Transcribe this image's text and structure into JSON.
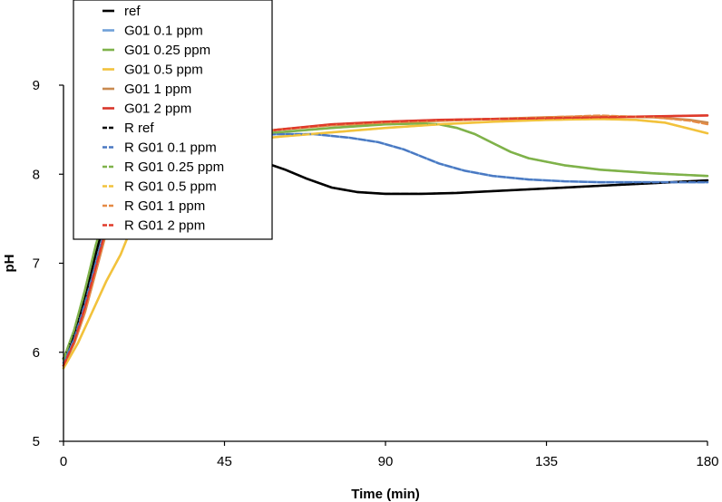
{
  "chart_data": {
    "type": "line",
    "title": "",
    "xlabel": "Time (min)",
    "ylabel": "pH",
    "xlim": [
      0,
      180
    ],
    "ylim": [
      5,
      9
    ],
    "x_ticks": [
      0,
      45,
      90,
      135,
      180
    ],
    "y_ticks": [
      5,
      6,
      7,
      8,
      9
    ],
    "grid": false,
    "legend_position": "top-left",
    "series": [
      {
        "name": "ref",
        "color": "#000000",
        "style": "solid",
        "points": [
          [
            0,
            5.93
          ],
          [
            3,
            6.2
          ],
          [
            6,
            6.6
          ],
          [
            9,
            7.1
          ],
          [
            12,
            7.55
          ],
          [
            15,
            7.9
          ],
          [
            18,
            8.1
          ],
          [
            21,
            8.22
          ],
          [
            25,
            8.28
          ],
          [
            30,
            8.28
          ],
          [
            40,
            8.24
          ],
          [
            50,
            8.18
          ],
          [
            57,
            8.12
          ],
          [
            62,
            8.05
          ],
          [
            68,
            7.95
          ],
          [
            75,
            7.85
          ],
          [
            82,
            7.8
          ],
          [
            90,
            7.78
          ],
          [
            100,
            7.78
          ],
          [
            110,
            7.79
          ],
          [
            120,
            7.81
          ],
          [
            135,
            7.84
          ],
          [
            150,
            7.87
          ],
          [
            165,
            7.9
          ],
          [
            180,
            7.93
          ]
        ]
      },
      {
        "name": "G01 0.1 ppm",
        "color": "#6fa0d8",
        "style": "solid",
        "points": [
          [
            0,
            5.88
          ],
          [
            3,
            6.15
          ],
          [
            6,
            6.55
          ],
          [
            9,
            7.0
          ],
          [
            12,
            7.45
          ],
          [
            15,
            7.8
          ],
          [
            18,
            8.05
          ],
          [
            22,
            8.22
          ],
          [
            30,
            8.33
          ],
          [
            40,
            8.4
          ],
          [
            50,
            8.43
          ],
          [
            60,
            8.45
          ],
          [
            70,
            8.45
          ],
          [
            80,
            8.41
          ],
          [
            88,
            8.36
          ],
          [
            95,
            8.28
          ],
          [
            100,
            8.2
          ],
          [
            105,
            8.12
          ],
          [
            112,
            8.04
          ],
          [
            120,
            7.98
          ],
          [
            130,
            7.94
          ],
          [
            140,
            7.92
          ],
          [
            150,
            7.91
          ],
          [
            165,
            7.91
          ],
          [
            180,
            7.91
          ]
        ]
      },
      {
        "name": "G01 0.25 ppm",
        "color": "#7fb24a",
        "style": "solid",
        "points": [
          [
            0,
            5.92
          ],
          [
            3,
            6.25
          ],
          [
            6,
            6.7
          ],
          [
            9,
            7.2
          ],
          [
            12,
            7.6
          ],
          [
            15,
            7.95
          ],
          [
            18,
            8.15
          ],
          [
            22,
            8.27
          ],
          [
            30,
            8.35
          ],
          [
            45,
            8.42
          ],
          [
            60,
            8.47
          ],
          [
            75,
            8.52
          ],
          [
            90,
            8.56
          ],
          [
            100,
            8.57
          ],
          [
            105,
            8.56
          ],
          [
            110,
            8.52
          ],
          [
            115,
            8.45
          ],
          [
            120,
            8.35
          ],
          [
            125,
            8.25
          ],
          [
            130,
            8.18
          ],
          [
            140,
            8.1
          ],
          [
            150,
            8.05
          ],
          [
            165,
            8.01
          ],
          [
            180,
            7.98
          ]
        ]
      },
      {
        "name": "G01 0.5 ppm",
        "color": "#f2c23c",
        "style": "solid",
        "points": [
          [
            0,
            5.82
          ],
          [
            4,
            6.1
          ],
          [
            8,
            6.45
          ],
          [
            12,
            6.8
          ],
          [
            16,
            7.1
          ],
          [
            20,
            7.5
          ],
          [
            24,
            7.85
          ],
          [
            28,
            8.1
          ],
          [
            33,
            8.25
          ],
          [
            40,
            8.33
          ],
          [
            50,
            8.38
          ],
          [
            60,
            8.42
          ],
          [
            75,
            8.47
          ],
          [
            90,
            8.52
          ],
          [
            105,
            8.56
          ],
          [
            120,
            8.59
          ],
          [
            135,
            8.61
          ],
          [
            150,
            8.62
          ],
          [
            160,
            8.61
          ],
          [
            168,
            8.58
          ],
          [
            175,
            8.51
          ],
          [
            180,
            8.46
          ]
        ]
      },
      {
        "name": "G01 1 ppm",
        "color": "#c98a50",
        "style": "solid",
        "points": [
          [
            0,
            5.85
          ],
          [
            3,
            6.1
          ],
          [
            6,
            6.45
          ],
          [
            9,
            6.9
          ],
          [
            12,
            7.35
          ],
          [
            15,
            7.75
          ],
          [
            18,
            8.0
          ],
          [
            22,
            8.2
          ],
          [
            30,
            8.32
          ],
          [
            45,
            8.42
          ],
          [
            60,
            8.5
          ],
          [
            75,
            8.55
          ],
          [
            90,
            8.58
          ],
          [
            105,
            8.6
          ],
          [
            120,
            8.62
          ],
          [
            135,
            8.64
          ],
          [
            150,
            8.65
          ],
          [
            165,
            8.64
          ],
          [
            175,
            8.61
          ],
          [
            180,
            8.58
          ]
        ]
      },
      {
        "name": "G01 2 ppm",
        "color": "#d9362b",
        "style": "solid",
        "points": [
          [
            0,
            5.85
          ],
          [
            3,
            6.12
          ],
          [
            6,
            6.5
          ],
          [
            9,
            6.95
          ],
          [
            12,
            7.4
          ],
          [
            15,
            7.8
          ],
          [
            18,
            8.05
          ],
          [
            22,
            8.22
          ],
          [
            30,
            8.33
          ],
          [
            45,
            8.43
          ],
          [
            60,
            8.5
          ],
          [
            75,
            8.56
          ],
          [
            90,
            8.59
          ],
          [
            105,
            8.61
          ],
          [
            120,
            8.62
          ],
          [
            135,
            8.63
          ],
          [
            150,
            8.64
          ],
          [
            165,
            8.65
          ],
          [
            180,
            8.66
          ]
        ]
      },
      {
        "name": "R ref",
        "color": "#000000",
        "style": "dashed",
        "points": [
          [
            0,
            5.93
          ],
          [
            3,
            6.2
          ],
          [
            6,
            6.6
          ],
          [
            9,
            7.1
          ],
          [
            12,
            7.55
          ],
          [
            15,
            7.9
          ],
          [
            18,
            8.1
          ],
          [
            21,
            8.22
          ],
          [
            25,
            8.28
          ],
          [
            30,
            8.28
          ],
          [
            40,
            8.24
          ],
          [
            50,
            8.18
          ],
          [
            57,
            8.12
          ],
          [
            62,
            8.05
          ],
          [
            68,
            7.95
          ],
          [
            75,
            7.85
          ],
          [
            82,
            7.8
          ],
          [
            90,
            7.78
          ],
          [
            100,
            7.78
          ],
          [
            110,
            7.79
          ],
          [
            120,
            7.81
          ],
          [
            135,
            7.84
          ],
          [
            150,
            7.87
          ],
          [
            165,
            7.9
          ],
          [
            180,
            7.93
          ]
        ]
      },
      {
        "name": "R G01 0.1 ppm",
        "color": "#4a78c2",
        "style": "dashed",
        "points": [
          [
            0,
            5.88
          ],
          [
            3,
            6.15
          ],
          [
            6,
            6.55
          ],
          [
            9,
            7.0
          ],
          [
            12,
            7.45
          ],
          [
            15,
            7.8
          ],
          [
            18,
            8.05
          ],
          [
            22,
            8.22
          ],
          [
            30,
            8.33
          ],
          [
            40,
            8.4
          ],
          [
            50,
            8.43
          ],
          [
            60,
            8.45
          ],
          [
            70,
            8.45
          ],
          [
            80,
            8.41
          ],
          [
            88,
            8.36
          ],
          [
            95,
            8.28
          ],
          [
            100,
            8.2
          ],
          [
            105,
            8.12
          ],
          [
            112,
            8.04
          ],
          [
            120,
            7.98
          ],
          [
            130,
            7.94
          ],
          [
            140,
            7.92
          ],
          [
            150,
            7.91
          ],
          [
            165,
            7.91
          ],
          [
            180,
            7.91
          ]
        ]
      },
      {
        "name": "R G01 0.25 ppm",
        "color": "#7fb24a",
        "style": "dashed",
        "points": [
          [
            0,
            5.92
          ],
          [
            3,
            6.25
          ],
          [
            6,
            6.7
          ],
          [
            9,
            7.2
          ],
          [
            12,
            7.6
          ],
          [
            15,
            7.95
          ],
          [
            18,
            8.15
          ],
          [
            22,
            8.27
          ],
          [
            30,
            8.35
          ],
          [
            45,
            8.42
          ],
          [
            60,
            8.47
          ],
          [
            75,
            8.52
          ],
          [
            90,
            8.56
          ],
          [
            100,
            8.57
          ],
          [
            105,
            8.56
          ],
          [
            110,
            8.52
          ],
          [
            115,
            8.45
          ],
          [
            120,
            8.35
          ],
          [
            125,
            8.25
          ],
          [
            130,
            8.18
          ],
          [
            140,
            8.1
          ],
          [
            150,
            8.05
          ],
          [
            165,
            8.01
          ],
          [
            180,
            7.98
          ]
        ]
      },
      {
        "name": "R G01 0.5 ppm",
        "color": "#f2c23c",
        "style": "dashed",
        "points": [
          [
            0,
            5.82
          ],
          [
            4,
            6.1
          ],
          [
            8,
            6.45
          ],
          [
            12,
            6.8
          ],
          [
            16,
            7.1
          ],
          [
            20,
            7.5
          ],
          [
            24,
            7.85
          ],
          [
            28,
            8.1
          ],
          [
            33,
            8.25
          ],
          [
            40,
            8.33
          ],
          [
            50,
            8.38
          ],
          [
            60,
            8.42
          ],
          [
            75,
            8.47
          ],
          [
            90,
            8.52
          ],
          [
            105,
            8.56
          ],
          [
            120,
            8.59
          ],
          [
            135,
            8.61
          ],
          [
            150,
            8.62
          ],
          [
            160,
            8.61
          ],
          [
            168,
            8.58
          ],
          [
            175,
            8.51
          ],
          [
            180,
            8.46
          ]
        ]
      },
      {
        "name": "R G01 1 ppm",
        "color": "#e58a45",
        "style": "dashed",
        "points": [
          [
            0,
            5.85
          ],
          [
            3,
            6.1
          ],
          [
            6,
            6.45
          ],
          [
            9,
            6.9
          ],
          [
            12,
            7.35
          ],
          [
            15,
            7.75
          ],
          [
            18,
            8.0
          ],
          [
            22,
            8.2
          ],
          [
            30,
            8.32
          ],
          [
            45,
            8.42
          ],
          [
            60,
            8.5
          ],
          [
            75,
            8.55
          ],
          [
            90,
            8.58
          ],
          [
            105,
            8.6
          ],
          [
            120,
            8.62
          ],
          [
            135,
            8.64
          ],
          [
            150,
            8.66
          ],
          [
            165,
            8.64
          ],
          [
            175,
            8.6
          ],
          [
            180,
            8.56
          ]
        ]
      },
      {
        "name": "R G01 2 ppm",
        "color": "#e03a2a",
        "style": "dashed",
        "points": [
          [
            0,
            5.85
          ],
          [
            3,
            6.12
          ],
          [
            6,
            6.5
          ],
          [
            9,
            6.95
          ],
          [
            12,
            7.4
          ],
          [
            15,
            7.8
          ],
          [
            18,
            8.05
          ],
          [
            22,
            8.22
          ],
          [
            30,
            8.33
          ],
          [
            45,
            8.43
          ],
          [
            60,
            8.5
          ],
          [
            75,
            8.56
          ],
          [
            90,
            8.59
          ],
          [
            105,
            8.61
          ],
          [
            120,
            8.62
          ],
          [
            135,
            8.63
          ],
          [
            150,
            8.64
          ],
          [
            165,
            8.65
          ],
          [
            180,
            8.66
          ]
        ]
      }
    ]
  }
}
